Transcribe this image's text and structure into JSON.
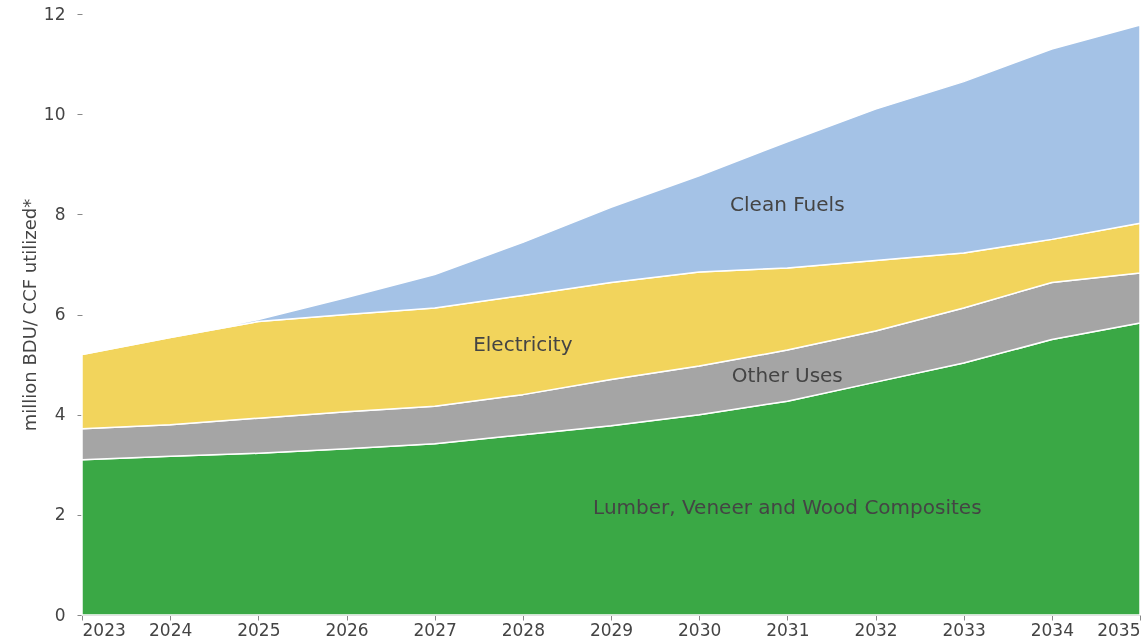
{
  "chart_data": {
    "type": "area",
    "stacked": true,
    "ylabel": "million BDU/ CCF utilized*",
    "x": [
      2023,
      2024,
      2025,
      2026,
      2027,
      2028,
      2029,
      2030,
      2031,
      2032,
      2033,
      2034,
      2035
    ],
    "xlim": [
      2023,
      2035
    ],
    "xticks": [
      2023,
      2024,
      2025,
      2026,
      2027,
      2028,
      2029,
      2030,
      2031,
      2032,
      2033,
      2034,
      2035
    ],
    "ylim": [
      0,
      12
    ],
    "yticks": [
      0,
      2,
      4,
      6,
      8,
      10,
      12
    ],
    "grid": false,
    "legend": false,
    "series": [
      {
        "name": "Lumber, Veneer and Wood Composites",
        "color": "#3aa845",
        "values": [
          3.1,
          3.17,
          3.23,
          3.32,
          3.42,
          3.6,
          3.78,
          4.0,
          4.27,
          4.65,
          5.03,
          5.5,
          5.83
        ]
      },
      {
        "name": "Other Uses",
        "color": "#a5a5a5",
        "values": [
          0.62,
          0.63,
          0.7,
          0.74,
          0.75,
          0.8,
          0.92,
          0.97,
          1.02,
          1.02,
          1.1,
          1.14,
          1.0
        ]
      },
      {
        "name": "Electricity",
        "color": "#f2d45c",
        "values": [
          1.48,
          1.74,
          1.93,
          1.94,
          1.96,
          1.98,
          1.94,
          1.88,
          1.64,
          1.41,
          1.1,
          0.86,
          0.99
        ]
      },
      {
        "name": "Clean Fuels",
        "color": "#a4c2e6",
        "values": [
          0,
          0,
          0.04,
          0.34,
          0.67,
          1.06,
          1.5,
          1.92,
          2.52,
          3.02,
          3.42,
          3.8,
          3.96
        ]
      }
    ]
  }
}
